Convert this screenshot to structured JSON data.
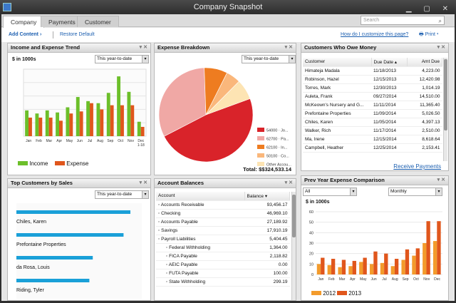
{
  "window": {
    "title": "Company Snapshot"
  },
  "tabs": [
    "Company",
    "Payments",
    "Customer"
  ],
  "search": {
    "placeholder": "Search"
  },
  "toolbar": {
    "add_content": "Add Content",
    "restore": "Restore Default",
    "howto": "How do I customize this page?",
    "print": "Print"
  },
  "income_expense": {
    "title": "Income and Expense Trend",
    "unit": "$ in 1000s",
    "range": "This year-to-date",
    "legend": [
      "Income",
      "Expense"
    ],
    "colors": {
      "income": "#6cbf2a",
      "expense": "#e0561c"
    },
    "chart_data": {
      "type": "bar",
      "categories": [
        "Jan",
        "Feb",
        "Mar",
        "Apr",
        "May",
        "Jun",
        "Jul",
        "Aug",
        "Sep",
        "Oct",
        "Nov",
        "Dec 1-18"
      ],
      "series": [
        {
          "name": "Income",
          "values": [
            25,
            22,
            25,
            23,
            28,
            38,
            34,
            32,
            42,
            58,
            43,
            14
          ]
        },
        {
          "name": "Expense",
          "values": [
            18,
            18,
            18,
            15,
            22,
            24,
            32,
            26,
            30,
            30,
            30,
            9
          ]
        }
      ],
      "ylim": [
        0,
        65
      ]
    }
  },
  "expense_breakdown": {
    "title": "Expense Breakdown",
    "range": "This year-to-date",
    "total": "Total: $$324,533.14",
    "chart_data": {
      "type": "pie",
      "slices": [
        {
          "label": "54000 · Jo...",
          "value": 48,
          "color": "#d9232a"
        },
        {
          "label": "62700 · Pa...",
          "value": 32,
          "color": "#f0a8a5"
        },
        {
          "label": "62100 · In...",
          "value": 8,
          "color": "#ee7c20"
        },
        {
          "label": "50100 · Co...",
          "value": 5,
          "color": "#fab77b"
        },
        {
          "label": "Other Accou...",
          "value": 7,
          "color": "#fde4b3"
        }
      ]
    }
  },
  "customers_owe": {
    "title": "Customers Who Owe Money",
    "columns": [
      "Customer",
      "Due Date",
      "Amt Due"
    ],
    "rows": [
      [
        "Himateja Madala",
        "11/18/2013",
        "4,223.00"
      ],
      [
        "Robinson, Hazel",
        "12/15/2013",
        "12,420.98"
      ],
      [
        "Torres, Mark",
        "12/30/2013",
        "1,014.19"
      ],
      [
        "Auleta, Frank",
        "09/27/2014",
        "14,510.00"
      ],
      [
        "McKeown's Nursery and G...",
        "11/11/2014",
        "11,365.40"
      ],
      [
        "Prefontaine Properties",
        "11/09/2014",
        "5,026.50"
      ],
      [
        "Chiles, Karen",
        "11/05/2014",
        "4,397.13"
      ],
      [
        "Walker, Rich",
        "11/17/2014",
        "2,510.00"
      ],
      [
        "Ma, Irene",
        "12/15/2014",
        "8,618.64"
      ],
      [
        "Campbell, Heather",
        "12/25/2014",
        "2,153.41"
      ]
    ],
    "link": "Receive Payments"
  },
  "top_customers": {
    "title": "Top Customers by Sales",
    "range": "This year-to-date",
    "chart_data": {
      "type": "bar",
      "orientation": "horizontal",
      "categories": [
        "Chiles, Karen",
        "Prefontaine Properties",
        "da Rosa, Louis",
        "Riding, Tyler"
      ],
      "values": [
        100,
        94,
        67,
        64
      ],
      "color": "#1aa0d8"
    }
  },
  "account_balances": {
    "title": "Account Balances",
    "columns": [
      "Account",
      "Balance"
    ],
    "rows": [
      {
        "name": "Accounts Receivable",
        "value": "93,456.17",
        "child": false
      },
      {
        "name": "Checking",
        "value": "46,969.10",
        "child": false
      },
      {
        "name": "Accounts Payable",
        "value": "27,189.92",
        "child": false
      },
      {
        "name": "Savings",
        "value": "17,910.19",
        "child": false
      },
      {
        "name": "Payroll Liabilities",
        "value": "5,404.45",
        "child": false
      },
      {
        "name": "Federal Withholding",
        "value": "1,364.00",
        "child": true
      },
      {
        "name": "FICA Payable",
        "value": "2,118.82",
        "child": true
      },
      {
        "name": "AEIC Payable",
        "value": "0.00",
        "child": true
      },
      {
        "name": "FUTA Payable",
        "value": "100.00",
        "child": true
      },
      {
        "name": "State Withholding",
        "value": "299.19",
        "child": true
      }
    ]
  },
  "prev_year": {
    "title": "Prev Year Expense Comparison",
    "filter": "All",
    "period": "Monthly",
    "unit": "$ in 1000s",
    "legend": [
      "2012",
      "2013"
    ],
    "chart_data": {
      "type": "bar",
      "categories": [
        "Jan",
        "Feb",
        "Mar",
        "Apr",
        "May",
        "Jun",
        "Jul",
        "Aug",
        "Sep",
        "Oct",
        "Nov",
        "Dec"
      ],
      "series": [
        {
          "name": "2012",
          "values": [
            10,
            9,
            7,
            8,
            12,
            10,
            11,
            8,
            14,
            18,
            30,
            32
          ],
          "color": "#f39b2c"
        },
        {
          "name": "2013",
          "values": [
            16,
            15,
            14,
            13,
            16,
            22,
            20,
            15,
            24,
            25,
            51,
            51
          ],
          "color": "#e0561c"
        }
      ],
      "yticks": [
        0,
        10,
        20,
        30,
        40,
        50,
        60
      ],
      "ylim": [
        0,
        60
      ]
    }
  }
}
